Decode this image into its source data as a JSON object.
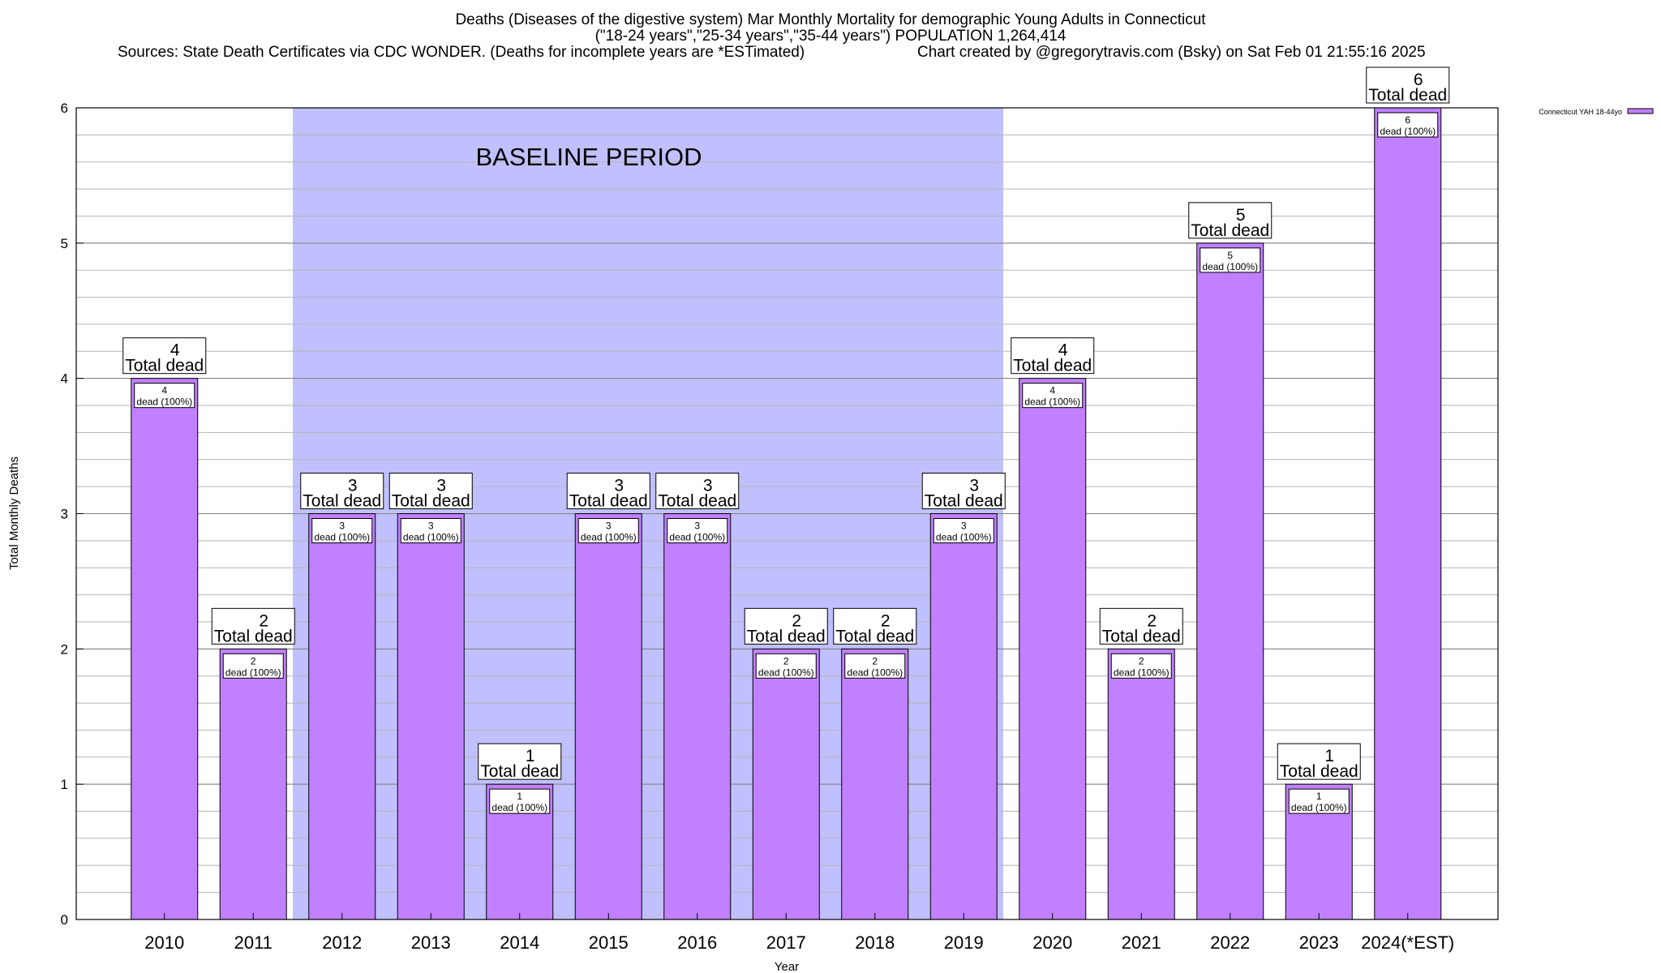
{
  "header": {
    "line1": "Deaths (Diseases of the digestive system) Mar Monthly Mortality for demographic Young Adults in Connecticut",
    "line2": "(\"18-24 years\",\"25-34 years\",\"35-44 years\") POPULATION 1,264,414",
    "line3": "Sources: State Death Certificates via CDC WONDER. (Deaths for incomplete years are *ESTimated)",
    "line4": "Chart created by @gregorytravis.com (Bsky) on Sat Feb 01 21:55:16 2025"
  },
  "chart_data": {
    "type": "bar",
    "title": "Deaths (Diseases of the digestive system) Mar Monthly Mortality for demographic Young Adults in Connecticut",
    "xlabel": "Year",
    "ylabel": "Total Monthly Deaths",
    "ylim": [
      0,
      6
    ],
    "yticks": [
      0,
      1,
      2,
      3,
      4,
      5,
      6
    ],
    "minor_ytick_step": 0.2,
    "grid": true,
    "legend_position": "top-right",
    "categories": [
      "2010",
      "2011",
      "2012",
      "2013",
      "2014",
      "2015",
      "2016",
      "2017",
      "2018",
      "2019",
      "2020",
      "2021",
      "2022",
      "2023",
      "2024(*EST)"
    ],
    "series": [
      {
        "name": "Connecticut YAH 18-44yo",
        "color": "#c080ff",
        "values": [
          4,
          2,
          3,
          3,
          1,
          3,
          3,
          2,
          2,
          3,
          4,
          2,
          5,
          1,
          6
        ]
      }
    ],
    "total_label_suffix": "Total dead",
    "inner_label_suffix": "dead (100%)",
    "shaded_region": {
      "label": "BASELINE PERIOD",
      "from": "2012",
      "to": "2019",
      "color": "#c0c0ff"
    }
  }
}
